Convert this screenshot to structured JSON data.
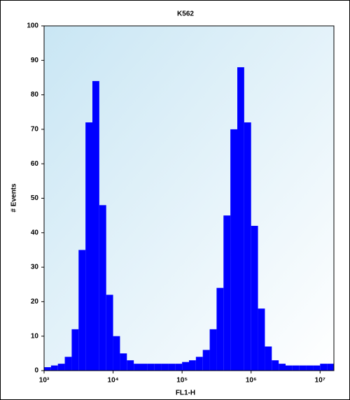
{
  "chart_data": {
    "type": "histogram",
    "title": "K562",
    "xlabel": "FL1-H",
    "ylabel": "# Events",
    "xscale": "log",
    "color": "#0000ff",
    "bins": [
      1000,
      1259,
      1585,
      1995,
      2512,
      3162,
      3981,
      5012,
      6310,
      7943,
      10000,
      12589,
      15849,
      19953,
      25119,
      31623,
      39811,
      50119,
      63096,
      79433,
      100000,
      125893,
      158489,
      199526,
      251189,
      316228,
      398107,
      501187,
      630957,
      794328,
      1000000,
      1258925,
      1584893,
      1995262,
      2511886,
      3162278,
      3981072,
      5011872,
      6309573,
      7943282,
      10000000,
      12589254,
      15848932
    ],
    "values": [
      1,
      1.5,
      2,
      4,
      12,
      35,
      72,
      84,
      48,
      22,
      10,
      5,
      3,
      2,
      2,
      2,
      2,
      2,
      2,
      2,
      2.5,
      3,
      4,
      6,
      12,
      24,
      45,
      70,
      88,
      72,
      42,
      18,
      7,
      3,
      2,
      1.5,
      1.5,
      1.5,
      1.5,
      1.5,
      2,
      2
    ],
    "xlim": [
      1000,
      15848932
    ],
    "ylim": [
      0,
      100
    ],
    "xticks": [
      {
        "value": 1000,
        "label": "10³"
      },
      {
        "value": 10000,
        "label": "10⁴"
      },
      {
        "value": 100000,
        "label": "10⁵"
      },
      {
        "value": 1000000,
        "label": "10⁶"
      },
      {
        "value": 10000000,
        "label": "10⁷"
      }
    ],
    "yticks": [
      0,
      10,
      20,
      30,
      40,
      50,
      60,
      70,
      80,
      90,
      100
    ]
  }
}
